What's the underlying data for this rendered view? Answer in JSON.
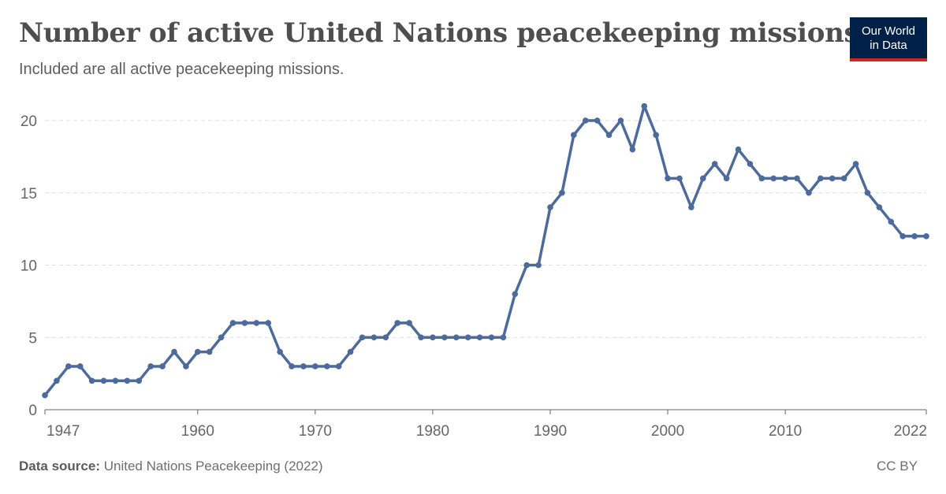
{
  "header": {
    "title": "Number of active United Nations peacekeeping missions",
    "subtitle": "Included are all active peacekeeping missions."
  },
  "logo": {
    "line1": "Our World",
    "line2": "in Data"
  },
  "footer": {
    "source_label": "Data source:",
    "source_text": "United Nations Peacekeeping (2022)",
    "license": "CC BY"
  },
  "colors": {
    "line": "#4c6a9c",
    "grid": "#dddddd",
    "axis": "#666666",
    "logo_bg": "#002147",
    "logo_accent": "#ce261e"
  },
  "chart_data": {
    "type": "line",
    "title": "Number of active United Nations peacekeeping missions",
    "xlabel": "",
    "ylabel": "",
    "xlim": [
      1947,
      2022
    ],
    "ylim": [
      0,
      21
    ],
    "yticks": [
      0,
      5,
      10,
      15,
      20
    ],
    "xticks": [
      1947,
      1960,
      1970,
      1980,
      1990,
      2000,
      2010,
      2022
    ],
    "grid": "horizontal dashed",
    "series": [
      {
        "x": [
          1947,
          1948,
          1949,
          1950,
          1951,
          1952,
          1953,
          1954,
          1955,
          1956,
          1957,
          1958,
          1959,
          1960,
          1961,
          1962,
          1963,
          1964,
          1965,
          1966,
          1967,
          1968,
          1969,
          1970,
          1971,
          1972,
          1973,
          1974,
          1975,
          1976,
          1977,
          1978,
          1979,
          1980,
          1981,
          1982,
          1983,
          1984,
          1985,
          1986,
          1987,
          1988,
          1989,
          1990,
          1991,
          1992,
          1993,
          1994,
          1995,
          1996,
          1997,
          1998,
          1999,
          2000,
          2001,
          2002,
          2003,
          2004,
          2005,
          2006,
          2007,
          2008,
          2009,
          2010,
          2011,
          2012,
          2013,
          2014,
          2015,
          2016,
          2017,
          2018,
          2019,
          2020,
          2021,
          2022
        ],
        "values": [
          1,
          2,
          3,
          3,
          2,
          2,
          2,
          2,
          2,
          3,
          3,
          4,
          3,
          4,
          4,
          5,
          6,
          6,
          6,
          6,
          4,
          3,
          3,
          3,
          3,
          3,
          4,
          5,
          5,
          5,
          6,
          6,
          5,
          5,
          5,
          5,
          5,
          5,
          5,
          5,
          8,
          10,
          10,
          14,
          15,
          19,
          20,
          20,
          19,
          20,
          18,
          21,
          19,
          16,
          16,
          14,
          16,
          17,
          16,
          18,
          17,
          16,
          16,
          16,
          16,
          15,
          16,
          16,
          16,
          17,
          15,
          14,
          13,
          12,
          12,
          12
        ]
      }
    ]
  }
}
